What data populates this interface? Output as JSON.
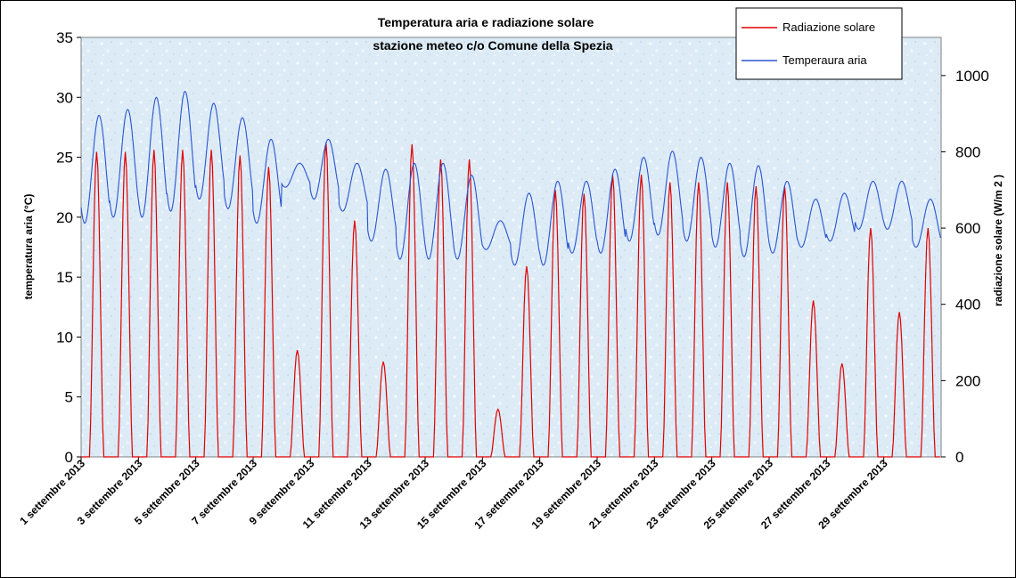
{
  "chart_data": {
    "type": "line",
    "title": "Temperatura aria e radiazione solare",
    "subtitle": "stazione meteo c/o Comune della Spezia",
    "ylabel": "temperatura aria (°C)",
    "y2label": "radiazione solare (W/m 2 )",
    "ylim": [
      0,
      35
    ],
    "y2lim": [
      0,
      1100
    ],
    "yticks": [
      "0",
      "5",
      "10",
      "15",
      "20",
      "25",
      "30",
      "35"
    ],
    "y2ticks": [
      "0",
      "200",
      "400",
      "600",
      "800",
      "1000"
    ],
    "xlim": [
      1,
      31
    ],
    "x_tick_labels": [
      "1 settembre 2013",
      "3 settembre 2013",
      "5 settembre 2013",
      "7 settembre 2013",
      "9 settembre 2013",
      "11 settembre 2013",
      "13 settembre 2013",
      "15 settembre 2013",
      "17 settembre 2013",
      "19 settembre 2013",
      "21 settembre 2013",
      "23 settembre 2013",
      "25 settembre 2013",
      "27 settembre 2013",
      "29 settembre 2013"
    ],
    "legend_position": "top-right",
    "grid": false,
    "series": [
      {
        "name": "Radiazione solare",
        "axis": "right",
        "color": "#e00000",
        "daily_peak_w_m2": [
          800,
          800,
          805,
          805,
          805,
          790,
          760,
          280,
          825,
          620,
          250,
          820,
          780,
          780,
          125,
          500,
          700,
          690,
          740,
          740,
          720,
          720,
          720,
          710,
          710,
          410,
          245,
          600,
          380,
          600
        ]
      },
      {
        "name": "Temperaura aria",
        "axis": "left",
        "color": "#2050d0",
        "day_mean_c": [
          24.0,
          24.5,
          25.0,
          25.5,
          25.5,
          24.5,
          23.0,
          23.5,
          24.0,
          22.5,
          21.0,
          20.5,
          20.5,
          20.0,
          18.5,
          19.0,
          19.5,
          20.0,
          20.5,
          21.5,
          22.0,
          21.5,
          21.0,
          20.5,
          20.0,
          19.5,
          20.0,
          21.0,
          21.0,
          19.5
        ],
        "day_amplitude_c": [
          4.5,
          4.5,
          5.0,
          5.0,
          4.0,
          3.8,
          3.5,
          1.0,
          2.5,
          2.0,
          3.0,
          4.0,
          4.0,
          3.5,
          1.2,
          3.0,
          3.5,
          3.0,
          3.5,
          3.5,
          3.5,
          3.5,
          3.5,
          3.8,
          3.0,
          2.0,
          2.0,
          2.0,
          2.0,
          2.0
        ],
        "observed_max_c": 30.8,
        "observed_min_c": 14.0
      }
    ]
  }
}
